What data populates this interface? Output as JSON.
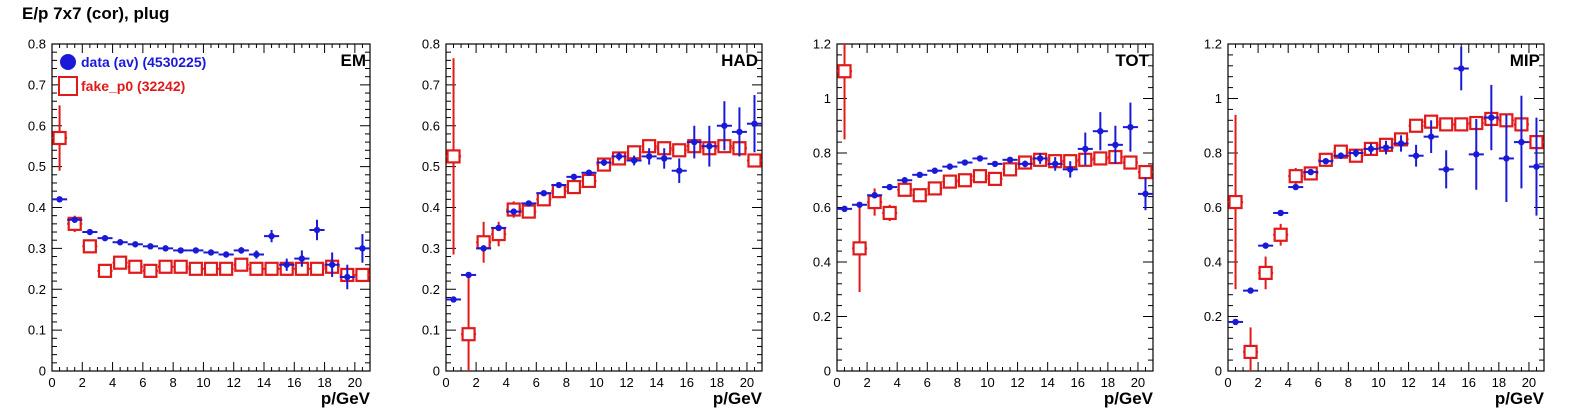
{
  "title": "E/p 7x7 (cor), plug",
  "colors": {
    "data": "#1a1ad6",
    "fake": "#e01a1a",
    "axis": "#000000"
  },
  "legend": [
    {
      "label": "data (av) (4530225)",
      "marker": "filled-circle",
      "color": "#1a1ad6"
    },
    {
      "label": "fake_p0 (32242)",
      "marker": "open-square",
      "color": "#e01a1a"
    }
  ],
  "chart_data": [
    {
      "type": "scatter",
      "panel_label": "EM",
      "xlabel": "p/GeV",
      "xlim": [
        0,
        21
      ],
      "ylim": [
        0,
        0.8
      ],
      "xticks": [
        0,
        2,
        4,
        6,
        8,
        10,
        12,
        14,
        16,
        18,
        20
      ],
      "yticks": [
        "0",
        "0.1",
        "0.2",
        "0.3",
        "0.4",
        "0.5",
        "0.6",
        "0.7",
        "0.8"
      ],
      "series": [
        {
          "name": "data (av) (4530225)",
          "x": [
            0.5,
            1.5,
            2.5,
            3.5,
            4.5,
            5.5,
            6.5,
            7.5,
            8.5,
            9.5,
            10.5,
            11.5,
            12.5,
            13.5,
            14.5,
            15.5,
            16.5,
            17.5,
            18.5,
            19.5,
            20.5
          ],
          "y": [
            0.42,
            0.37,
            0.34,
            0.325,
            0.315,
            0.31,
            0.305,
            0.3,
            0.295,
            0.295,
            0.29,
            0.285,
            0.295,
            0.285,
            0.33,
            0.26,
            0.275,
            0.345,
            0.26,
            0.23,
            0.3
          ],
          "err": [
            0.005,
            0.005,
            0.005,
            0.004,
            0.004,
            0.004,
            0.004,
            0.004,
            0.005,
            0.005,
            0.006,
            0.007,
            0.008,
            0.01,
            0.015,
            0.015,
            0.02,
            0.025,
            0.03,
            0.03,
            0.035
          ]
        },
        {
          "name": "fake_p0 (32242)",
          "x": [
            0.5,
            1.5,
            2.5,
            3.5,
            4.5,
            5.5,
            6.5,
            7.5,
            8.5,
            9.5,
            10.5,
            11.5,
            12.5,
            13.5,
            14.5,
            15.5,
            16.5,
            17.5,
            18.5,
            19.5,
            20.5
          ],
          "y": [
            0.57,
            0.36,
            0.305,
            0.245,
            0.265,
            0.255,
            0.245,
            0.255,
            0.255,
            0.25,
            0.25,
            0.25,
            0.26,
            0.25,
            0.25,
            0.25,
            0.25,
            0.25,
            0.255,
            0.235,
            0.235
          ],
          "err": [
            0.08,
            0.02,
            0.015,
            0.01,
            0.01,
            0.01,
            0.01,
            0.01,
            0.01,
            0.01,
            0.01,
            0.01,
            0.01,
            0.01,
            0.01,
            0.01,
            0.01,
            0.01,
            0.015,
            0.015,
            0.015
          ]
        }
      ]
    },
    {
      "type": "scatter",
      "panel_label": "HAD",
      "xlabel": "p/GeV",
      "xlim": [
        0,
        21
      ],
      "ylim": [
        0,
        0.8
      ],
      "xticks": [
        0,
        2,
        4,
        6,
        8,
        10,
        12,
        14,
        16,
        18,
        20
      ],
      "yticks": [
        "0",
        "0.1",
        "0.2",
        "0.3",
        "0.4",
        "0.5",
        "0.6",
        "0.7",
        "0.8"
      ],
      "series": [
        {
          "name": "data (av) (4530225)",
          "x": [
            0.5,
            1.5,
            2.5,
            3.5,
            4.5,
            5.5,
            6.5,
            7.5,
            8.5,
            9.5,
            10.5,
            11.5,
            12.5,
            13.5,
            14.5,
            15.5,
            16.5,
            17.5,
            18.5,
            19.5,
            20.5
          ],
          "y": [
            0.175,
            0.235,
            0.3,
            0.35,
            0.39,
            0.41,
            0.435,
            0.455,
            0.475,
            0.485,
            0.51,
            0.525,
            0.515,
            0.525,
            0.52,
            0.49,
            0.56,
            0.55,
            0.6,
            0.585,
            0.605
          ],
          "err": [
            0.005,
            0.005,
            0.005,
            0.005,
            0.005,
            0.005,
            0.005,
            0.005,
            0.006,
            0.006,
            0.008,
            0.01,
            0.012,
            0.02,
            0.025,
            0.03,
            0.04,
            0.05,
            0.06,
            0.06,
            0.07
          ]
        },
        {
          "name": "fake_p0 (32242)",
          "x": [
            0.5,
            1.5,
            2.5,
            3.5,
            4.5,
            5.5,
            6.5,
            7.5,
            8.5,
            9.5,
            10.5,
            11.5,
            12.5,
            13.5,
            14.5,
            15.5,
            16.5,
            17.5,
            18.5,
            19.5,
            20.5
          ],
          "y": [
            0.525,
            0.09,
            0.315,
            0.335,
            0.395,
            0.39,
            0.42,
            0.44,
            0.45,
            0.465,
            0.505,
            0.52,
            0.535,
            0.55,
            0.545,
            0.54,
            0.55,
            0.545,
            0.55,
            0.545,
            0.515
          ],
          "err": [
            0.24,
            0.15,
            0.05,
            0.03,
            0.02,
            0.015,
            0.015,
            0.012,
            0.012,
            0.012,
            0.012,
            0.012,
            0.012,
            0.012,
            0.012,
            0.012,
            0.012,
            0.012,
            0.012,
            0.012,
            0.015
          ]
        }
      ]
    },
    {
      "type": "scatter",
      "panel_label": "TOT",
      "xlabel": "p/GeV",
      "xlim": [
        0,
        21
      ],
      "ylim": [
        0,
        1.2
      ],
      "xticks": [
        0,
        2,
        4,
        6,
        8,
        10,
        12,
        14,
        16,
        18,
        20
      ],
      "yticks": [
        "0",
        "0.2",
        "0.4",
        "0.6",
        "0.8",
        "1",
        "1.2"
      ],
      "series": [
        {
          "name": "data (av) (4530225)",
          "x": [
            0.5,
            1.5,
            2.5,
            3.5,
            4.5,
            5.5,
            6.5,
            7.5,
            8.5,
            9.5,
            10.5,
            11.5,
            12.5,
            13.5,
            14.5,
            15.5,
            16.5,
            17.5,
            18.5,
            19.5,
            20.5
          ],
          "y": [
            0.595,
            0.61,
            0.645,
            0.675,
            0.7,
            0.72,
            0.735,
            0.75,
            0.765,
            0.78,
            0.76,
            0.775,
            0.76,
            0.78,
            0.76,
            0.74,
            0.815,
            0.88,
            0.83,
            0.895,
            0.65
          ],
          "err": [
            0.005,
            0.005,
            0.005,
            0.005,
            0.005,
            0.005,
            0.005,
            0.005,
            0.006,
            0.006,
            0.008,
            0.01,
            0.012,
            0.02,
            0.025,
            0.03,
            0.06,
            0.07,
            0.07,
            0.09,
            0.06
          ]
        },
        {
          "name": "fake_p0 (32242)",
          "x": [
            0.5,
            1.5,
            2.5,
            3.5,
            4.5,
            5.5,
            6.5,
            7.5,
            8.5,
            9.5,
            10.5,
            11.5,
            12.5,
            13.5,
            14.5,
            15.5,
            16.5,
            17.5,
            18.5,
            19.5,
            20.5
          ],
          "y": [
            1.1,
            0.45,
            0.62,
            0.58,
            0.665,
            0.645,
            0.67,
            0.695,
            0.7,
            0.715,
            0.705,
            0.74,
            0.765,
            0.775,
            0.77,
            0.77,
            0.775,
            0.78,
            0.785,
            0.765,
            0.73
          ],
          "err": [
            0.25,
            0.16,
            0.05,
            0.03,
            0.02,
            0.015,
            0.015,
            0.015,
            0.015,
            0.015,
            0.015,
            0.015,
            0.015,
            0.015,
            0.015,
            0.015,
            0.015,
            0.015,
            0.015,
            0.015,
            0.02
          ]
        }
      ]
    },
    {
      "type": "scatter",
      "panel_label": "MIP",
      "xlabel": "p/GeV",
      "xlim": [
        0,
        21
      ],
      "ylim": [
        0,
        1.2
      ],
      "xticks": [
        0,
        2,
        4,
        6,
        8,
        10,
        12,
        14,
        16,
        18,
        20
      ],
      "yticks": [
        "0",
        "0.2",
        "0.4",
        "0.6",
        "0.8",
        "1",
        "1.2"
      ],
      "series": [
        {
          "name": "data (av) (4530225)",
          "x": [
            0.5,
            1.5,
            2.5,
            3.5,
            4.5,
            5.5,
            6.5,
            7.5,
            8.5,
            9.5,
            10.5,
            11.5,
            12.5,
            13.5,
            14.5,
            15.5,
            16.5,
            17.5,
            18.5,
            19.5,
            20.5
          ],
          "y": [
            0.18,
            0.295,
            0.46,
            0.58,
            0.675,
            0.73,
            0.77,
            0.79,
            0.8,
            0.815,
            0.82,
            0.835,
            0.79,
            0.86,
            0.74,
            1.11,
            0.795,
            0.93,
            0.78,
            0.84,
            0.75
          ],
          "err": [
            0.005,
            0.005,
            0.006,
            0.006,
            0.008,
            0.008,
            0.01,
            0.012,
            0.015,
            0.02,
            0.025,
            0.03,
            0.04,
            0.06,
            0.07,
            0.08,
            0.13,
            0.12,
            0.16,
            0.17,
            0.18
          ]
        },
        {
          "name": "fake_p0 (32242)",
          "x": [
            0.5,
            1.5,
            2.5,
            3.5,
            4.5,
            5.5,
            6.5,
            7.5,
            8.5,
            9.5,
            10.5,
            11.5,
            12.5,
            13.5,
            14.5,
            15.5,
            16.5,
            17.5,
            18.5,
            19.5,
            20.5
          ],
          "y": [
            0.62,
            0.07,
            0.36,
            0.5,
            0.715,
            0.725,
            0.775,
            0.805,
            0.79,
            0.815,
            0.83,
            0.85,
            0.9,
            0.915,
            0.905,
            0.905,
            0.91,
            0.925,
            0.92,
            0.905,
            0.84
          ],
          "err": [
            0.32,
            0.09,
            0.06,
            0.04,
            0.03,
            0.02,
            0.02,
            0.015,
            0.015,
            0.015,
            0.015,
            0.015,
            0.015,
            0.015,
            0.015,
            0.015,
            0.015,
            0.015,
            0.015,
            0.015,
            0.02
          ]
        }
      ]
    }
  ]
}
